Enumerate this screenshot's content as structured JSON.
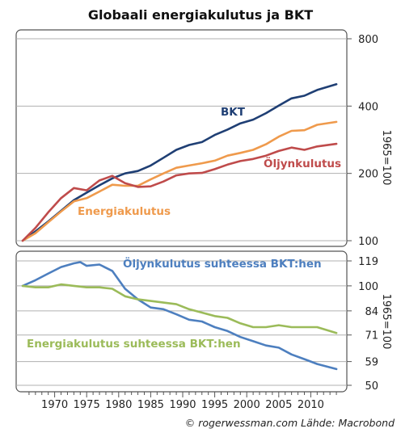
{
  "title": "Globaali energiakulutus ja BKT",
  "credit": "© rogerwessman.com Lähde: Macrobond",
  "colors": {
    "bkt": "#1f3f74",
    "energia": "#ef9a4c",
    "oljy": "#bf4b4b",
    "oljy_ratio": "#4d7fbf",
    "energia_ratio": "#9bbb59",
    "grid": "#b0b0b0",
    "frame": "#555555"
  },
  "chart_data": [
    {
      "type": "line",
      "scale": "log",
      "ylabel": "1965=100",
      "yticks": [
        100,
        200,
        400,
        800
      ],
      "ytick_labels": [
        "100",
        "200",
        "400",
        "800"
      ],
      "ylim": [
        93,
        850
      ],
      "xlim": [
        1965,
        2015
      ],
      "grid": true,
      "series": [
        {
          "key": "bkt",
          "name": "BKT",
          "x": [
            1965,
            1967,
            1969,
            1971,
            1973,
            1975,
            1977,
            1979,
            1981,
            1983,
            1985,
            1987,
            1989,
            1991,
            1993,
            1995,
            1997,
            1999,
            2001,
            2003,
            2005,
            2007,
            2009,
            2011,
            2014
          ],
          "values": [
            100,
            110,
            122,
            136,
            152,
            164,
            177,
            190,
            200,
            205,
            217,
            235,
            255,
            268,
            276,
            297,
            314,
            335,
            348,
            372,
            402,
            433,
            445,
            472,
            501
          ]
        },
        {
          "key": "energia",
          "name": "Energiakulutus",
          "x": [
            1965,
            1967,
            1969,
            1971,
            1973,
            1975,
            1977,
            1979,
            1981,
            1983,
            1985,
            1987,
            1989,
            1991,
            1993,
            1995,
            1997,
            1999,
            2001,
            2003,
            2005,
            2007,
            2009,
            2011,
            2014
          ],
          "values": [
            100,
            108,
            121,
            135,
            150,
            155,
            166,
            178,
            176,
            176,
            188,
            200,
            212,
            217,
            222,
            228,
            240,
            247,
            255,
            270,
            292,
            310,
            312,
            330,
            340
          ]
        },
        {
          "key": "oljy",
          "name": "Öljynkulutus",
          "x": [
            1965,
            1967,
            1969,
            1971,
            1973,
            1975,
            1977,
            1979,
            1981,
            1983,
            1985,
            1987,
            1989,
            1991,
            1993,
            1995,
            1997,
            1999,
            2001,
            2003,
            2005,
            2007,
            2009,
            2011,
            2014
          ],
          "values": [
            100,
            114,
            134,
            155,
            172,
            168,
            186,
            195,
            181,
            174,
            175,
            184,
            196,
            200,
            201,
            209,
            219,
            227,
            232,
            240,
            252,
            261,
            255,
            264,
            271
          ]
        }
      ],
      "labels": {
        "bkt": "BKT",
        "energia": "Energiakulutus",
        "oljy": "Öljynkulutus"
      }
    },
    {
      "type": "line",
      "scale": "log",
      "ylabel": "1965=100",
      "yticks": [
        50,
        59,
        71,
        84,
        100,
        119
      ],
      "ytick_labels": [
        "50",
        "59",
        "71",
        "84",
        "100",
        "119"
      ],
      "ylim": [
        50,
        122
      ],
      "xlim": [
        1965,
        2015
      ],
      "xticks": [
        1970,
        1975,
        1980,
        1985,
        1990,
        1995,
        2000,
        2005,
        2010
      ],
      "xtick_labels": [
        "1970",
        "1975",
        "1980",
        "1985",
        "1990",
        "1995",
        "2000",
        "2005",
        "2010"
      ],
      "grid": true,
      "series": [
        {
          "key": "oljy_ratio",
          "name": "Öljynkulutus suhteessa BKT:hen",
          "x": [
            1965,
            1967,
            1969,
            1971,
            1973,
            1974,
            1975,
            1977,
            1979,
            1981,
            1983,
            1985,
            1987,
            1989,
            1991,
            1993,
            1995,
            1997,
            1999,
            2001,
            2003,
            2005,
            2007,
            2009,
            2011,
            2014
          ],
          "values": [
            100,
            104,
            109,
            114,
            117,
            118,
            115,
            116,
            111,
            98,
            91,
            86,
            85,
            82,
            79,
            78,
            75,
            73,
            70,
            68,
            66,
            65,
            62,
            60,
            58,
            56
          ]
        },
        {
          "key": "energia_ratio",
          "name": "Energiakulutus suhteessa BKT:hen",
          "x": [
            1965,
            1967,
            1969,
            1971,
            1973,
            1975,
            1977,
            1979,
            1981,
            1983,
            1985,
            1987,
            1989,
            1991,
            1993,
            1995,
            1997,
            1999,
            2001,
            2003,
            2005,
            2007,
            2009,
            2011,
            2014
          ],
          "values": [
            100,
            99,
            99,
            101,
            100,
            99,
            99,
            98,
            93,
            91,
            90,
            89,
            88,
            85,
            83,
            81,
            80,
            77,
            75,
            75,
            76,
            75,
            75,
            75,
            72
          ]
        }
      ],
      "labels": {
        "oljy_ratio": "Öljynkulutus suhteessa BKT:hen",
        "energia_ratio": "Energiakulutus suhteessa BKT:hen"
      }
    }
  ]
}
